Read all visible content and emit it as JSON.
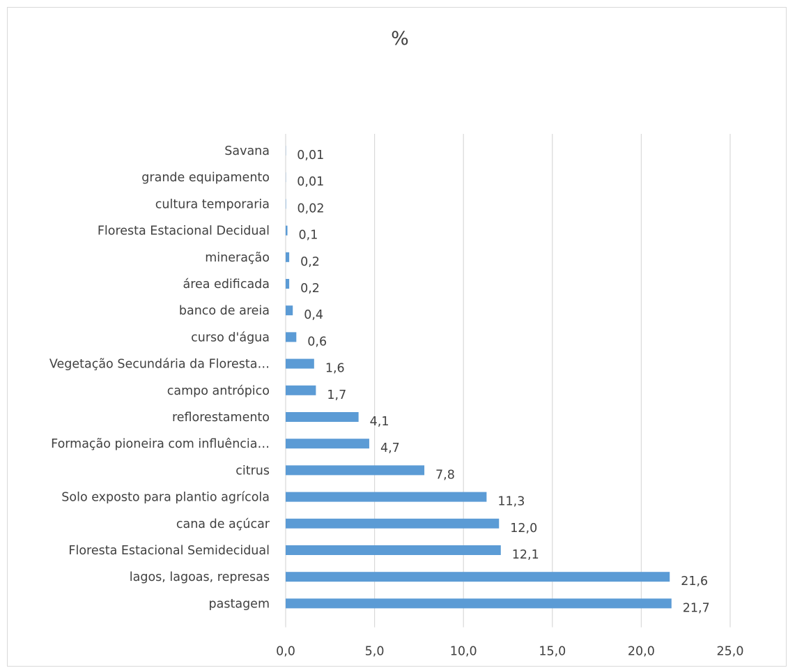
{
  "chart_data": {
    "type": "bar",
    "orientation": "horizontal",
    "title": "%",
    "xlabel": "",
    "ylabel": "",
    "xlim": [
      0,
      25
    ],
    "x_ticks": [
      "0,0",
      "5,0",
      "10,0",
      "15,0",
      "20,0",
      "25,0"
    ],
    "grid": "vertical",
    "legend": "none",
    "bar_color": "#5b9bd5",
    "categories": [
      "Savana",
      "grande equipamento",
      "cultura temporaria",
      "Floresta Estacional Decidual",
      "mineração",
      "área edificada",
      "banco de areia",
      "curso d'água",
      "Vegetação Secundária da Floresta…",
      "campo antrópico",
      "reflorestamento",
      "Formação pioneira com influência…",
      "citrus",
      "Solo exposto para plantio agrícola",
      "cana de açúcar",
      "Floresta Estacional Semidecidual",
      "lagos, lagoas, represas",
      "pastagem"
    ],
    "values": [
      0.01,
      0.01,
      0.02,
      0.1,
      0.2,
      0.2,
      0.4,
      0.6,
      1.6,
      1.7,
      4.1,
      4.7,
      7.8,
      11.3,
      12.0,
      12.1,
      21.6,
      21.7
    ],
    "data_labels": [
      "0,01",
      "0,01",
      "0,02",
      "0,1",
      "0,2",
      "0,2",
      "0,4",
      "0,6",
      "1,6",
      "1,7",
      "4,1",
      "4,7",
      "7,8",
      "11,3",
      "12,0",
      "12,1",
      "21,6",
      "21,7"
    ]
  }
}
